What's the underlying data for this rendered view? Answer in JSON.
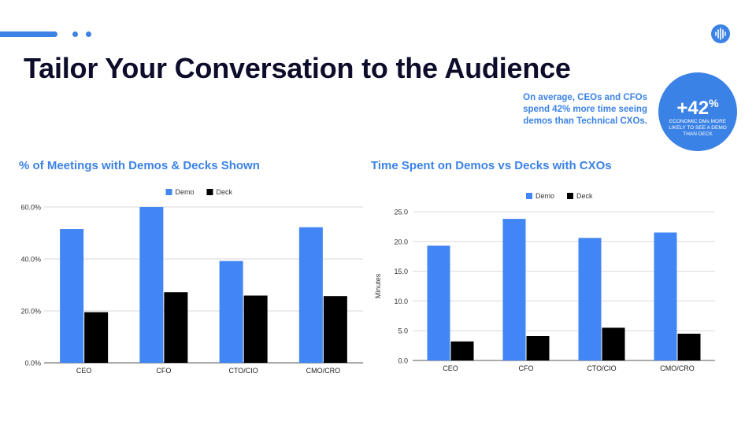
{
  "slide": {
    "title": "Tailor Your Conversation to the Audience",
    "callout": "On average, CEOs and CFOs spend 42% more time seeing demos than Technical CXOs.",
    "badge_value": "+42",
    "badge_unit": "%",
    "badge_text": "ECONOMIC DMs MORE LIKELY TO SEE A DEMO THAN DECK"
  },
  "colors": {
    "accent": "#3b82e6",
    "demo": "#4285f4",
    "deck": "#000000",
    "title": "#0d0d2b"
  },
  "icons": {
    "logo": "audio-wave-logo-icon"
  },
  "chart_data": [
    {
      "type": "bar",
      "title": "% of Meetings with Demos & Decks Shown",
      "categories": [
        "CEO",
        "CFO",
        "CTO/CIO",
        "CMO/CRO"
      ],
      "series": [
        {
          "name": "Demo",
          "values": [
            51.5,
            60.0,
            39.2,
            52.2
          ]
        },
        {
          "name": "Deck",
          "values": [
            19.5,
            27.2,
            25.9,
            25.7
          ]
        }
      ],
      "ylim": [
        0,
        60
      ],
      "yticks": [
        0,
        20,
        40,
        60
      ],
      "ytick_labels": [
        "0.0%",
        "20.0%",
        "40.0%",
        "60.0%"
      ],
      "xlabel": "",
      "ylabel": "",
      "legend": "top-center",
      "grid": true
    },
    {
      "type": "bar",
      "title": "Time Spent on Demos vs Decks with CXOs",
      "categories": [
        "CEO",
        "CFO",
        "CTO/CIO",
        "CMO/CRO"
      ],
      "series": [
        {
          "name": "Demo",
          "values": [
            19.3,
            23.8,
            20.6,
            21.5
          ]
        },
        {
          "name": "Deck",
          "values": [
            3.2,
            4.1,
            5.5,
            4.5
          ]
        }
      ],
      "ylim": [
        0,
        25
      ],
      "yticks": [
        0,
        5,
        10,
        15,
        20,
        25
      ],
      "ytick_labels": [
        "0.0",
        "5.0",
        "10.0",
        "15.0",
        "20.0",
        "25.0"
      ],
      "xlabel": "",
      "ylabel": "Minutes",
      "legend": "top-center",
      "grid": true
    }
  ]
}
